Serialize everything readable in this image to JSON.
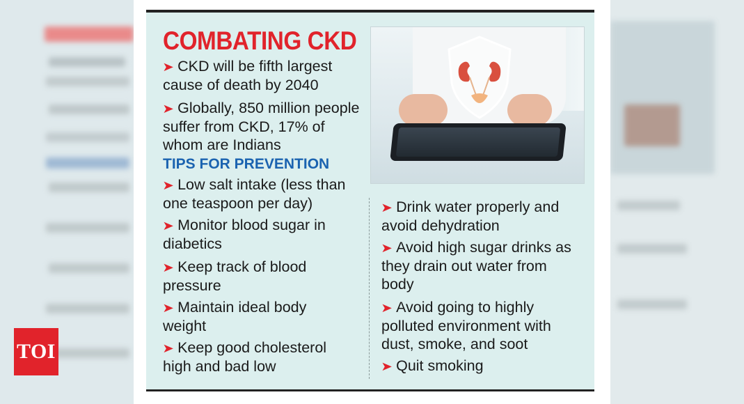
{
  "title": "COMBATING CKD",
  "facts": [
    "CKD will be fifth largest cause of death by 2040",
    "Globally, 850 million people suffer from CKD, 17% of whom are Indians"
  ],
  "tips_heading": "TIPS FOR PREVENTION",
  "tips_left": [
    "Low salt intake (less than one teaspoon per day)",
    "Monitor blood sugar in diabetics",
    "Keep track of blood pressure",
    "Maintain ideal body weight",
    "Keep good cholesterol high and bad low"
  ],
  "tips_right": [
    "Drink water properly and avoid dehydration",
    "Avoid high sugar drinks as they drain out water from body",
    "Avoid going to highly polluted environment with dust, smoke, and soot",
    "Quit smoking"
  ],
  "arrow": "➤",
  "logo": "TOI",
  "colors": {
    "accent": "#e1232b",
    "heading": "#1b63b0",
    "panel": "#dcefee"
  }
}
